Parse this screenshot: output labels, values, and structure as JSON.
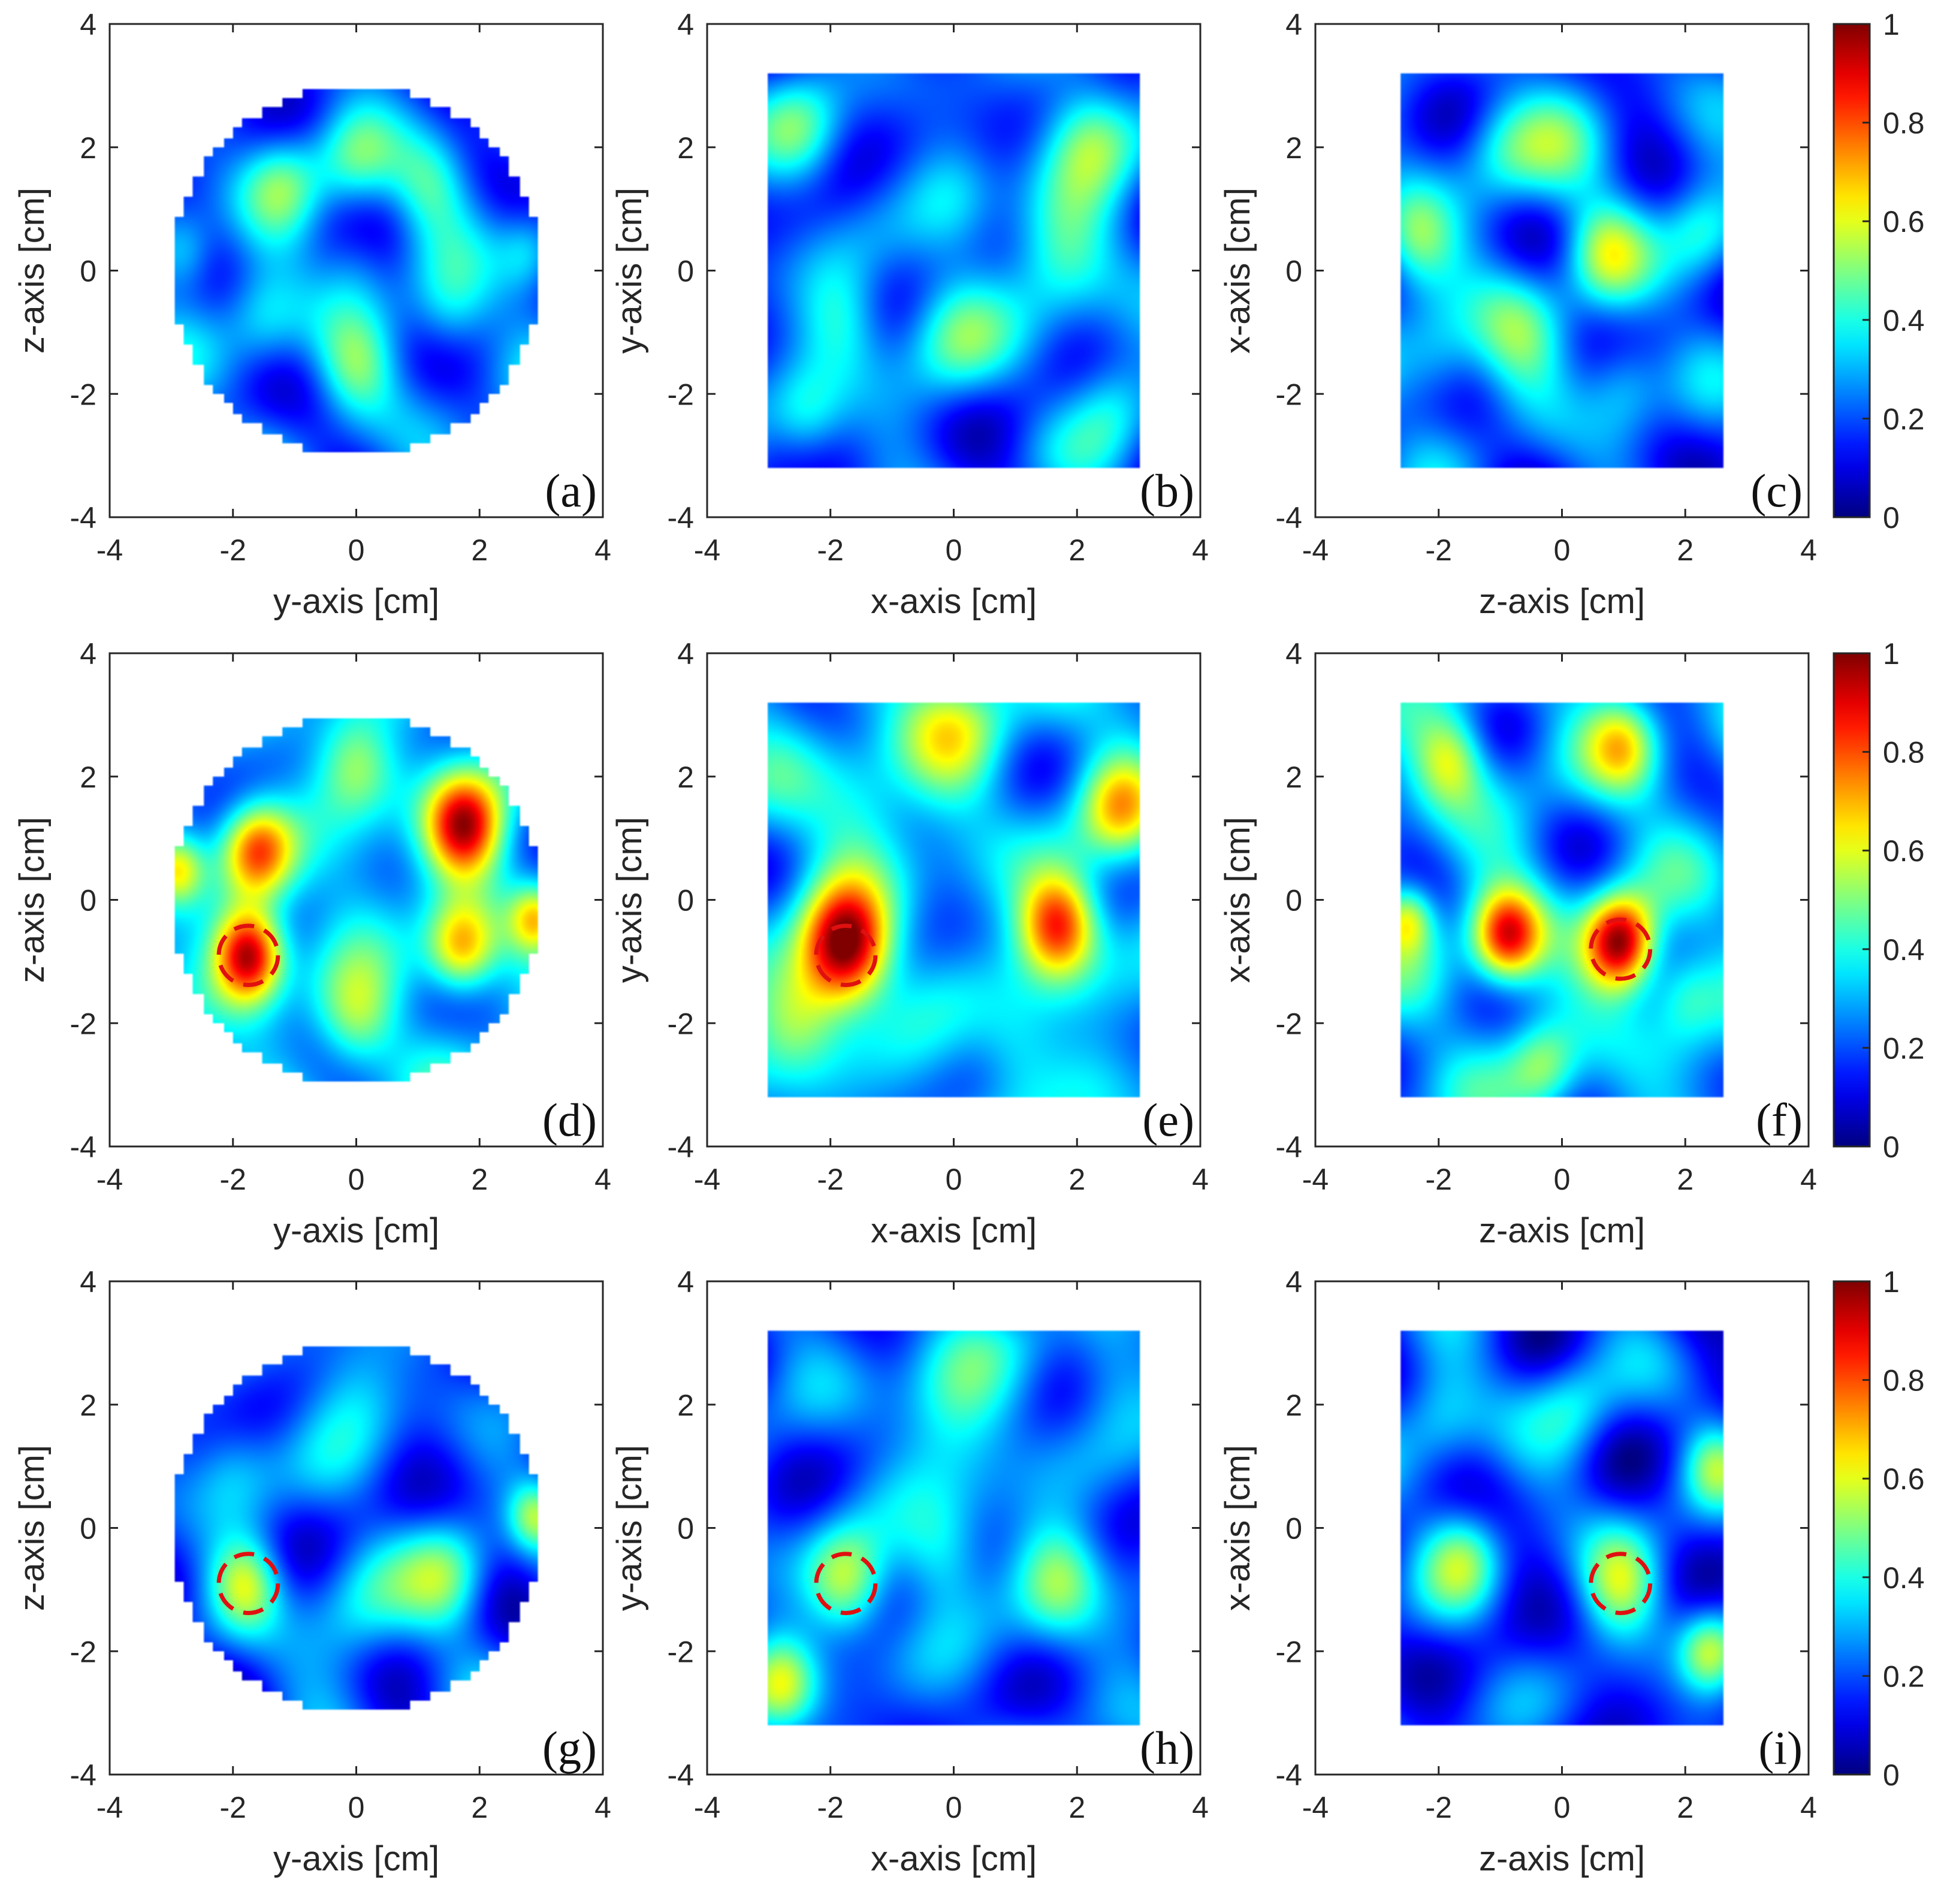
{
  "chart_data": {
    "type": "heatmap",
    "colormap": "jet",
    "colorbar": {
      "range": [
        0,
        1
      ],
      "ticks": [
        "0",
        "0.2",
        "0.4",
        "0.6",
        "0.8",
        "1"
      ]
    },
    "axis_ticks": [
      "-4",
      "-2",
      "0",
      "2",
      "4"
    ],
    "axis_range": [
      -4,
      4
    ],
    "panels": [
      {
        "label": "(a)",
        "row": 0,
        "col": 0,
        "xlabel": "y-axis [cm]",
        "ylabel": "z-axis [cm]",
        "shape": "circle",
        "extent": {
          "x": [
            -3,
            3
          ],
          "y": [
            -3,
            3
          ]
        },
        "seed": 11,
        "base": 0.2,
        "marker": null,
        "blobs": [
          [
            -1.2,
            1.4,
            0.45,
            0.22
          ],
          [
            1.2,
            1.4,
            0.45,
            0.22
          ],
          [
            -1.5,
            -0.8,
            0.45,
            0.2
          ],
          [
            1.5,
            -0.8,
            0.45,
            0.2
          ],
          [
            0,
            1.8,
            0.45,
            0.2
          ],
          [
            0,
            -1.6,
            0.45,
            0.22
          ],
          [
            -2.8,
            0.3,
            0.35,
            0.2
          ],
          [
            2.8,
            0.3,
            0.35,
            0.2
          ],
          [
            0,
            0.2,
            0.4,
            0.12
          ]
        ]
      },
      {
        "label": "(b)",
        "row": 0,
        "col": 1,
        "xlabel": "x-axis [cm]",
        "ylabel": "y-axis [cm]",
        "shape": "square",
        "extent": {
          "x": [
            -3,
            3
          ],
          "y": [
            -3.2,
            3.2
          ]
        },
        "seed": 23,
        "base": 0.18,
        "marker": null,
        "blobs": [
          [
            -2.5,
            2.2,
            0.5,
            0.25
          ],
          [
            2.2,
            2.2,
            0.55,
            0.3
          ],
          [
            1.8,
            0.3,
            0.6,
            0.28
          ],
          [
            -1.8,
            -0.8,
            0.5,
            0.22
          ],
          [
            0,
            -1.0,
            0.6,
            0.25
          ],
          [
            -2.4,
            -2.4,
            0.45,
            0.22
          ],
          [
            2.6,
            -2.2,
            0.5,
            0.22
          ],
          [
            0,
            1.2,
            0.5,
            0.12
          ]
        ]
      },
      {
        "label": "(c)",
        "row": 0,
        "col": 2,
        "xlabel": "z-axis [cm]",
        "ylabel": "x-axis [cm]",
        "shape": "square",
        "extent": {
          "x": [
            -2.6,
            2.6
          ],
          "y": [
            -3.2,
            3.2
          ]
        },
        "seed": 37,
        "base": 0.18,
        "marker": null,
        "blobs": [
          [
            -2.4,
            0.5,
            0.45,
            0.3
          ],
          [
            2.3,
            0.6,
            0.45,
            0.28
          ],
          [
            0.7,
            0.3,
            0.45,
            0.3
          ],
          [
            -0.7,
            -1.0,
            0.55,
            0.25
          ],
          [
            -2.0,
            -1.5,
            0.5,
            0.22
          ],
          [
            1.0,
            -1.8,
            0.45,
            0.22
          ],
          [
            0,
            2.0,
            0.6,
            0.18
          ],
          [
            -1.0,
            2.0,
            0.5,
            0.18
          ]
        ]
      },
      {
        "label": "(d)",
        "row": 1,
        "col": 0,
        "xlabel": "y-axis [cm]",
        "ylabel": "z-axis [cm]",
        "shape": "circle",
        "extent": {
          "x": [
            -3,
            3
          ],
          "y": [
            -3,
            3
          ]
        },
        "seed": 49,
        "base": 0.28,
        "marker": {
          "x": -1.75,
          "y": -0.9,
          "r": 0.48
        },
        "blobs": [
          [
            -1.75,
            -0.9,
            0.4,
            0.75
          ],
          [
            1.75,
            1.2,
            0.45,
            0.65
          ],
          [
            -1.6,
            0.8,
            0.4,
            0.45
          ],
          [
            1.7,
            -0.8,
            0.4,
            0.45
          ],
          [
            0,
            2.2,
            0.45,
            0.25
          ],
          [
            0,
            -2.0,
            0.45,
            0.25
          ],
          [
            -2.9,
            0.5,
            0.3,
            0.35
          ],
          [
            2.9,
            -0.3,
            0.3,
            0.35
          ],
          [
            0,
            0.1,
            0.5,
            0.1
          ]
        ]
      },
      {
        "label": "(e)",
        "row": 1,
        "col": 1,
        "xlabel": "x-axis [cm]",
        "ylabel": "y-axis [cm]",
        "shape": "square",
        "extent": {
          "x": [
            -3,
            3
          ],
          "y": [
            -3.2,
            3.2
          ]
        },
        "seed": 61,
        "base": 0.28,
        "marker": {
          "x": -1.75,
          "y": -0.9,
          "r": 0.48
        },
        "blobs": [
          [
            -1.75,
            -0.8,
            0.5,
            0.75
          ],
          [
            1.7,
            -0.4,
            0.45,
            0.6
          ],
          [
            2.7,
            1.5,
            0.45,
            0.35
          ],
          [
            -2.5,
            -1.8,
            0.5,
            0.25
          ],
          [
            0,
            2.8,
            0.6,
            0.25
          ],
          [
            -1.5,
            1.5,
            0.6,
            0.18
          ],
          [
            1.0,
            -2.5,
            0.5,
            0.15
          ]
        ]
      },
      {
        "label": "(f)",
        "row": 1,
        "col": 2,
        "xlabel": "z-axis [cm]",
        "ylabel": "x-axis [cm]",
        "shape": "square",
        "extent": {
          "x": [
            -2.6,
            2.6
          ],
          "y": [
            -3.2,
            3.2
          ]
        },
        "seed": 73,
        "base": 0.28,
        "marker": {
          "x": 0.95,
          "y": -0.8,
          "r": 0.48
        },
        "blobs": [
          [
            0.95,
            -0.7,
            0.4,
            0.75
          ],
          [
            -0.9,
            -0.6,
            0.4,
            0.62
          ],
          [
            -1.8,
            2.3,
            0.4,
            0.3
          ],
          [
            1.0,
            2.5,
            0.4,
            0.3
          ],
          [
            -2.5,
            -0.3,
            0.3,
            0.35
          ],
          [
            -0.3,
            -2.7,
            0.4,
            0.25
          ],
          [
            2.0,
            -1.5,
            0.4,
            0.2
          ]
        ]
      },
      {
        "label": "(g)",
        "row": 2,
        "col": 0,
        "xlabel": "y-axis [cm]",
        "ylabel": "z-axis [cm]",
        "shape": "circle",
        "extent": {
          "x": [
            -3,
            3
          ],
          "y": [
            -3,
            3
          ]
        },
        "seed": 85,
        "base": 0.17,
        "marker": {
          "x": -1.75,
          "y": -0.9,
          "r": 0.48
        },
        "blobs": [
          [
            -1.8,
            -0.9,
            0.4,
            0.35
          ],
          [
            1.5,
            -0.8,
            0.5,
            0.3
          ],
          [
            0,
            2.2,
            0.6,
            0.2
          ],
          [
            -2.0,
            1.0,
            0.5,
            0.18
          ],
          [
            2.9,
            0.2,
            0.3,
            0.3
          ],
          [
            0,
            -1.4,
            0.6,
            0.2
          ]
        ]
      },
      {
        "label": "(h)",
        "row": 2,
        "col": 1,
        "xlabel": "x-axis [cm]",
        "ylabel": "y-axis [cm]",
        "shape": "square",
        "extent": {
          "x": [
            -3,
            3
          ],
          "y": [
            -3.2,
            3.2
          ]
        },
        "seed": 97,
        "base": 0.2,
        "marker": {
          "x": -1.75,
          "y": -0.9,
          "r": 0.48
        },
        "blobs": [
          [
            -1.75,
            -0.9,
            0.45,
            0.35
          ],
          [
            1.7,
            -0.8,
            0.5,
            0.3
          ],
          [
            -2.8,
            -2.5,
            0.4,
            0.35
          ],
          [
            0,
            2.0,
            0.7,
            0.25
          ],
          [
            -0.2,
            -0.5,
            0.5,
            0.22
          ],
          [
            2.5,
            2.5,
            0.5,
            0.15
          ]
        ]
      },
      {
        "label": "(i)",
        "row": 2,
        "col": 2,
        "xlabel": "z-axis [cm]",
        "ylabel": "x-axis [cm]",
        "shape": "square",
        "extent": {
          "x": [
            -2.6,
            2.6
          ],
          "y": [
            -3.2,
            3.2
          ]
        },
        "seed": 109,
        "base": 0.17,
        "marker": {
          "x": 0.95,
          "y": -0.9,
          "r": 0.48
        },
        "blobs": [
          [
            0.95,
            -0.9,
            0.45,
            0.35
          ],
          [
            -1.6,
            -0.5,
            0.45,
            0.28
          ],
          [
            2.4,
            -2.0,
            0.35,
            0.35
          ],
          [
            -2.0,
            1.8,
            0.5,
            0.22
          ],
          [
            0.2,
            2.0,
            0.5,
            0.2
          ],
          [
            2.5,
            1.0,
            0.35,
            0.25
          ]
        ]
      }
    ]
  }
}
